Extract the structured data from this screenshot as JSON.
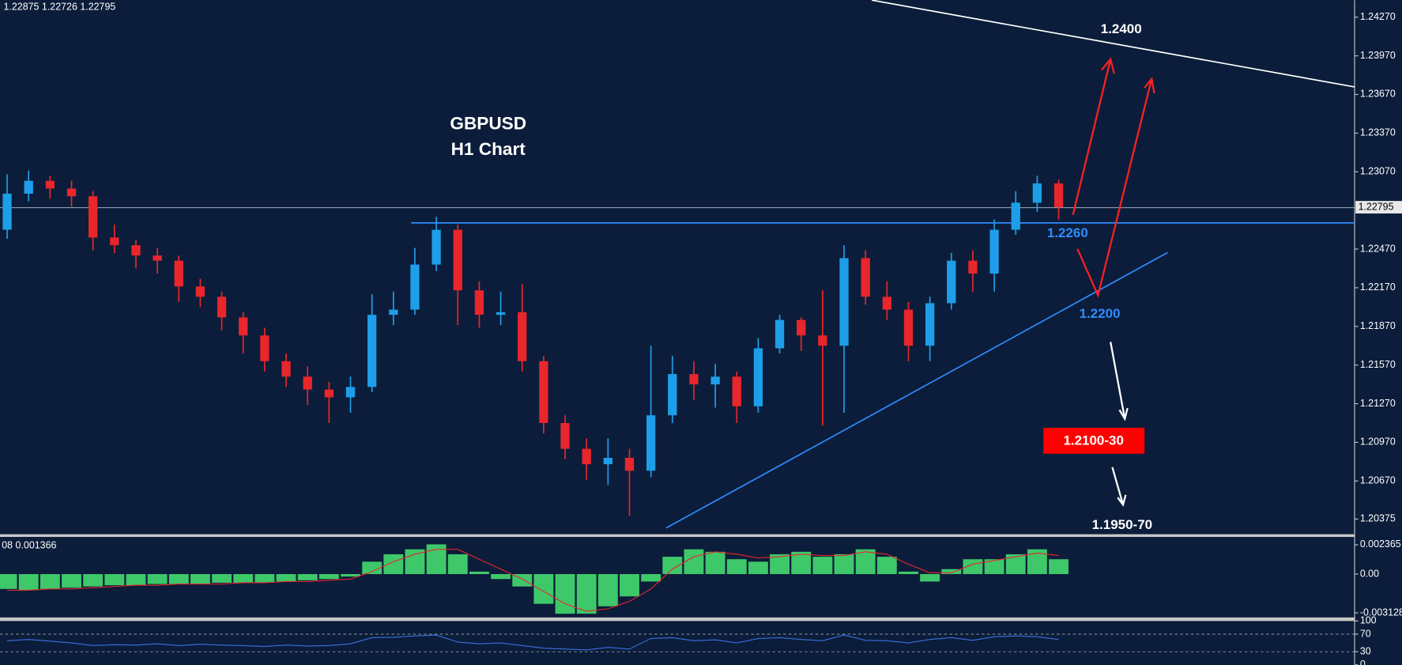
{
  "chart_data": [
    {
      "type": "candlestick",
      "header": "1.22875 1.22726 1.22795",
      "title": "GBPUSD",
      "subtitle": "H1 Chart",
      "current_price": {
        "value": 1.22795,
        "label": "1.22795"
      },
      "annotations": [
        "1.2400",
        "1.2260",
        "1.2200",
        "1.2100-30",
        "1.1950-70"
      ],
      "up_color": "#1e9ee8",
      "down_color": "#e8262b",
      "ylim": [
        1.20257,
        1.24402
      ],
      "yticks": [
        {
          "value": 1.2427,
          "label": "1.24270"
        },
        {
          "value": 1.2397,
          "label": "1.23970"
        },
        {
          "value": 1.2367,
          "label": "1.23670"
        },
        {
          "value": 1.2337,
          "label": "1.23370"
        },
        {
          "value": 1.2307,
          "label": "1.23070"
        },
        {
          "value": 1.2247,
          "label": "1.22470"
        },
        {
          "value": 1.2217,
          "label": "1.22170"
        },
        {
          "value": 1.2187,
          "label": "1.21870"
        },
        {
          "value": 1.2157,
          "label": "1.21570"
        },
        {
          "value": 1.2127,
          "label": "1.21270"
        },
        {
          "value": 1.2097,
          "label": "1.20970"
        },
        {
          "value": 1.2067,
          "label": "1.20670"
        },
        {
          "value": 1.20375,
          "label": "1.20375"
        }
      ],
      "open": [
        1.2262,
        1.229,
        1.23,
        1.2294,
        1.2288,
        1.2256,
        1.225,
        1.2242,
        1.2238,
        1.2218,
        1.221,
        1.2194,
        1.218,
        1.216,
        1.2148,
        1.2138,
        1.2132,
        1.214,
        1.2196,
        1.22,
        1.2235,
        1.2262,
        1.2215,
        1.2196,
        1.2198,
        1.216,
        1.2112,
        1.2092,
        1.208,
        1.2085,
        1.2075,
        1.2118,
        1.215,
        1.2142,
        1.2148,
        1.2125,
        1.217,
        1.2192,
        1.218,
        1.2172,
        1.224,
        1.221,
        1.22,
        1.2172,
        1.2205,
        1.2238,
        1.2228,
        1.2262,
        1.2283,
        1.2298
      ],
      "high": [
        1.2305,
        1.2308,
        1.2304,
        1.23,
        1.2292,
        1.2266,
        1.2254,
        1.2248,
        1.2242,
        1.2224,
        1.2214,
        1.2198,
        1.2186,
        1.2166,
        1.2156,
        1.2144,
        1.2148,
        1.2212,
        1.2214,
        1.2248,
        1.2272,
        1.2266,
        1.2222,
        1.2214,
        1.222,
        1.2164,
        1.2118,
        1.21,
        1.21,
        1.2092,
        1.2172,
        1.2164,
        1.216,
        1.2158,
        1.2152,
        1.2178,
        1.2196,
        1.2194,
        1.2215,
        1.225,
        1.2246,
        1.2222,
        1.2206,
        1.221,
        1.2244,
        1.2246,
        1.227,
        1.2292,
        1.2304,
        1.2301
      ],
      "low": [
        1.2255,
        1.2284,
        1.2286,
        1.228,
        1.2246,
        1.2244,
        1.2232,
        1.2228,
        1.2206,
        1.2202,
        1.2184,
        1.2166,
        1.2152,
        1.214,
        1.2126,
        1.2112,
        1.212,
        1.2136,
        1.2188,
        1.2196,
        1.223,
        1.2188,
        1.2186,
        1.2188,
        1.2152,
        1.2104,
        1.2084,
        1.2068,
        1.2064,
        1.204,
        1.207,
        1.2112,
        1.213,
        1.2124,
        1.2112,
        1.212,
        1.2166,
        1.2168,
        1.211,
        1.212,
        1.2204,
        1.2192,
        1.216,
        1.216,
        1.22,
        1.2214,
        1.2214,
        1.2258,
        1.2276,
        1.227
      ],
      "close": [
        1.229,
        1.23,
        1.2294,
        1.2288,
        1.2256,
        1.225,
        1.2242,
        1.2238,
        1.2218,
        1.221,
        1.2194,
        1.218,
        1.216,
        1.2148,
        1.2138,
        1.2132,
        1.214,
        1.2196,
        1.22,
        1.2235,
        1.2262,
        1.2215,
        1.2196,
        1.2198,
        1.216,
        1.2112,
        1.2092,
        1.208,
        1.2085,
        1.2075,
        1.2118,
        1.215,
        1.2142,
        1.2148,
        1.2125,
        1.217,
        1.2192,
        1.218,
        1.2172,
        1.224,
        1.221,
        1.22,
        1.2172,
        1.2205,
        1.2238,
        1.2228,
        1.2262,
        1.2283,
        1.2298,
        1.22795
      ]
    },
    {
      "type": "macd",
      "header": "08 0.001366",
      "color": "#3ec86a",
      "signal_color": "#e8262b",
      "ylim": [
        -0.0035,
        0.003
      ],
      "yticks": [
        {
          "value": 0.002365,
          "label": "0.002365"
        },
        {
          "value": 0,
          "label": "0.00"
        },
        {
          "value": -0.003128,
          "label": "-0.003128"
        }
      ],
      "values": [
        -0.0012,
        -0.0013,
        -0.0012,
        -0.0011,
        -0.001,
        -0.0009,
        -0.0009,
        -0.0008,
        -0.0008,
        -0.0008,
        -0.0007,
        -0.0007,
        -0.0007,
        -0.0006,
        -0.0005,
        -0.0004,
        -0.0002,
        0.001,
        0.0016,
        0.002,
        0.0024,
        0.0016,
        0.0002,
        -0.0004,
        -0.001,
        -0.0024,
        -0.0032,
        -0.0032,
        -0.0026,
        -0.0018,
        -0.0006,
        0.0014,
        0.002,
        0.0018,
        0.0012,
        0.001,
        0.0016,
        0.0018,
        0.0014,
        0.0016,
        0.002,
        0.0014,
        0.0002,
        -0.0006,
        0.0004,
        0.0012,
        0.0012,
        0.0016,
        0.002,
        0.0012
      ],
      "signal": [
        -0.0013,
        -0.0013,
        -0.0012,
        -0.0012,
        -0.0011,
        -0.001,
        -0.0009,
        -0.0009,
        -0.0008,
        -0.0008,
        -0.0008,
        -0.0007,
        -0.0007,
        -0.0006,
        -0.0006,
        -0.0005,
        -0.0004,
        0.0002,
        0.001,
        0.0016,
        0.002,
        0.002,
        0.0012,
        0.0004,
        -0.0004,
        -0.0014,
        -0.0024,
        -0.003,
        -0.0028,
        -0.0022,
        -0.0012,
        0.0004,
        0.0014,
        0.0018,
        0.0016,
        0.0013,
        0.0014,
        0.0016,
        0.0015,
        0.0015,
        0.0018,
        0.0016,
        0.0008,
        0.0001,
        0.0001,
        0.0008,
        0.0011,
        0.0014,
        0.0017,
        0.0015
      ]
    },
    {
      "type": "rsi",
      "color": "#3c6fe0",
      "ylim": [
        0,
        100
      ],
      "yticks": [
        100,
        70,
        30,
        0
      ],
      "values": [
        55,
        58,
        54,
        50,
        44,
        46,
        45,
        48,
        44,
        47,
        45,
        44,
        42,
        45,
        43,
        44,
        48,
        62,
        63,
        66,
        68,
        52,
        48,
        50,
        44,
        38,
        36,
        34,
        40,
        36,
        60,
        62,
        55,
        57,
        50,
        60,
        62,
        58,
        55,
        68,
        56,
        55,
        50,
        58,
        62,
        56,
        64,
        66,
        64,
        58
      ]
    }
  ]
}
